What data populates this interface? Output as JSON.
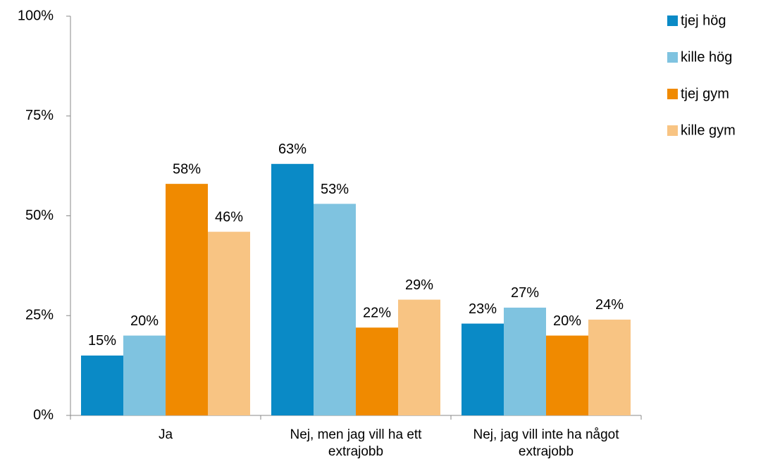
{
  "chart_data": {
    "type": "bar",
    "categories": [
      "Ja",
      "Nej, men jag vill ha ett extrajobb",
      "Nej, jag vill inte ha något extrajobb"
    ],
    "series": [
      {
        "name": "tjej hög",
        "color": "#0a8ac6",
        "values": [
          15,
          63,
          23
        ],
        "value_labels": [
          "15%",
          "63%",
          "23%"
        ]
      },
      {
        "name": "kille hög",
        "color": "#7fc3e0",
        "values": [
          20,
          53,
          27
        ],
        "value_labels": [
          "20%",
          "53%",
          "27%"
        ]
      },
      {
        "name": "tjej gym",
        "color": "#f08a00",
        "values": [
          58,
          22,
          20
        ],
        "value_labels": [
          "58%",
          "22%",
          "20%"
        ]
      },
      {
        "name": "kille gym",
        "color": "#f8c483",
        "values": [
          46,
          29,
          24
        ],
        "value_labels": [
          "46%",
          "29%",
          "24%"
        ]
      }
    ],
    "ylim": [
      0,
      100
    ],
    "yticks": [
      {
        "value": 0,
        "label": "0%"
      },
      {
        "value": 25,
        "label": "25%"
      },
      {
        "value": 50,
        "label": "50%"
      },
      {
        "value": 75,
        "label": "75%"
      },
      {
        "value": 100,
        "label": "100%"
      }
    ],
    "legend": "right"
  }
}
